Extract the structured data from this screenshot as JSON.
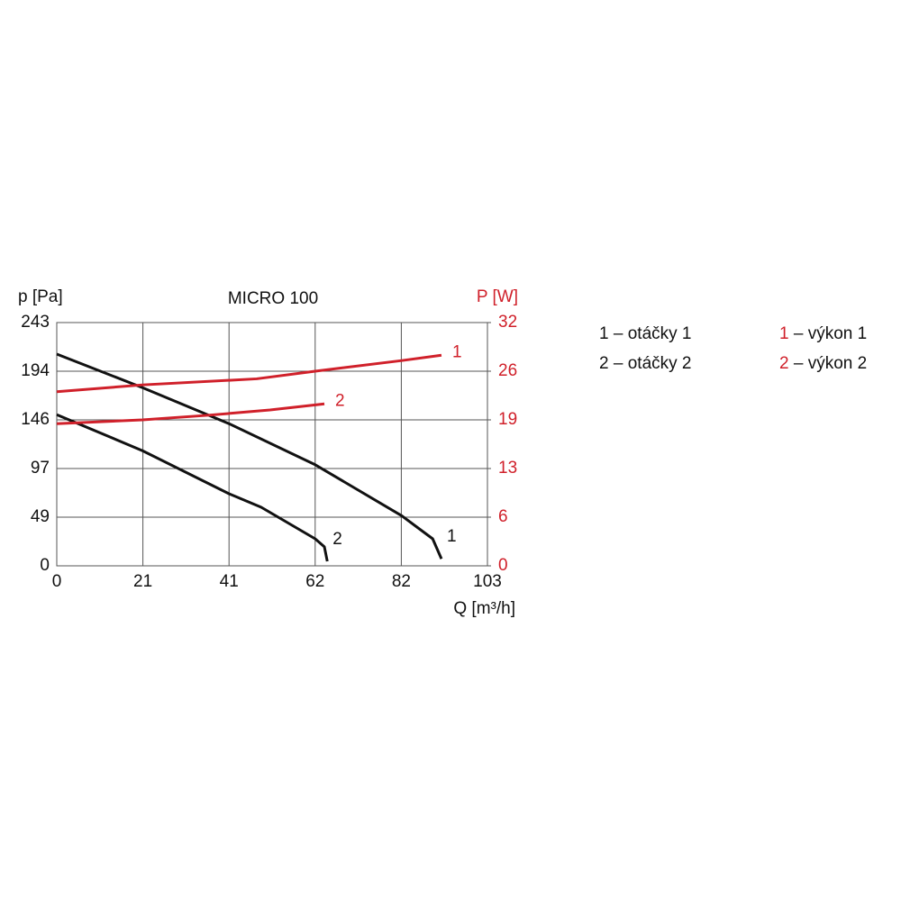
{
  "chart_data": {
    "type": "line",
    "title": "MICRO 100",
    "ylabel": "p [Pa]",
    "y2label": "P [W]",
    "xlabel": "Q [m³/h]",
    "xlim": [
      0,
      103
    ],
    "xticks": [
      0,
      {
        "value": 20.6,
        "label": "21"
      },
      {
        "value": 41.2,
        "label": "41"
      },
      {
        "value": 61.8,
        "label": "62"
      },
      {
        "value": 82.4,
        "label": "82"
      },
      103
    ],
    "ylim": [
      0,
      243
    ],
    "yticks": [
      0,
      {
        "value": 48.6,
        "label": "49"
      },
      {
        "value": 97.2,
        "label": "97"
      },
      {
        "value": 145.8,
        "label": "146"
      },
      {
        "value": 194.4,
        "label": "194"
      },
      243
    ],
    "y2lim": [
      0,
      32
    ],
    "y2ticks": [
      0,
      {
        "value": 6.4,
        "label": "6"
      },
      {
        "value": 12.8,
        "label": "13"
      },
      {
        "value": 19.2,
        "label": "19"
      },
      {
        "value": 25.6,
        "label": "26"
      },
      32
    ],
    "grid": true,
    "legend_separator": "–",
    "series": [
      {
        "name": "otáčky 1",
        "label": "1",
        "color": "#111111",
        "x": [
          0,
          20.5,
          41.2,
          61.8,
          82.5,
          89.9,
          92
        ],
        "values": [
          211.5,
          178,
          142,
          101,
          50,
          27,
          7
        ]
      },
      {
        "name": "výkon 1",
        "label": "1",
        "color": "#d0202a",
        "axis": "y2",
        "x": [
          0,
          20.5,
          47.8,
          61.8,
          82.5,
          92
        ],
        "values": [
          22.9,
          23.8,
          24.6,
          25.6,
          27.0,
          27.7
        ]
      },
      {
        "name": "otáčky 2",
        "label": "2",
        "color": "#111111",
        "x": [
          0,
          20.5,
          41.2,
          48.9,
          61.8,
          64,
          64.7
        ],
        "values": [
          151,
          115,
          72,
          58.5,
          27,
          19,
          4.5
        ]
      },
      {
        "name": "výkon 2",
        "label": "2",
        "color": "#d0202a",
        "axis": "y2",
        "x": [
          0,
          20.5,
          36,
          51,
          64
        ],
        "values": [
          18.7,
          19.2,
          19.8,
          20.5,
          21.3
        ]
      }
    ]
  }
}
